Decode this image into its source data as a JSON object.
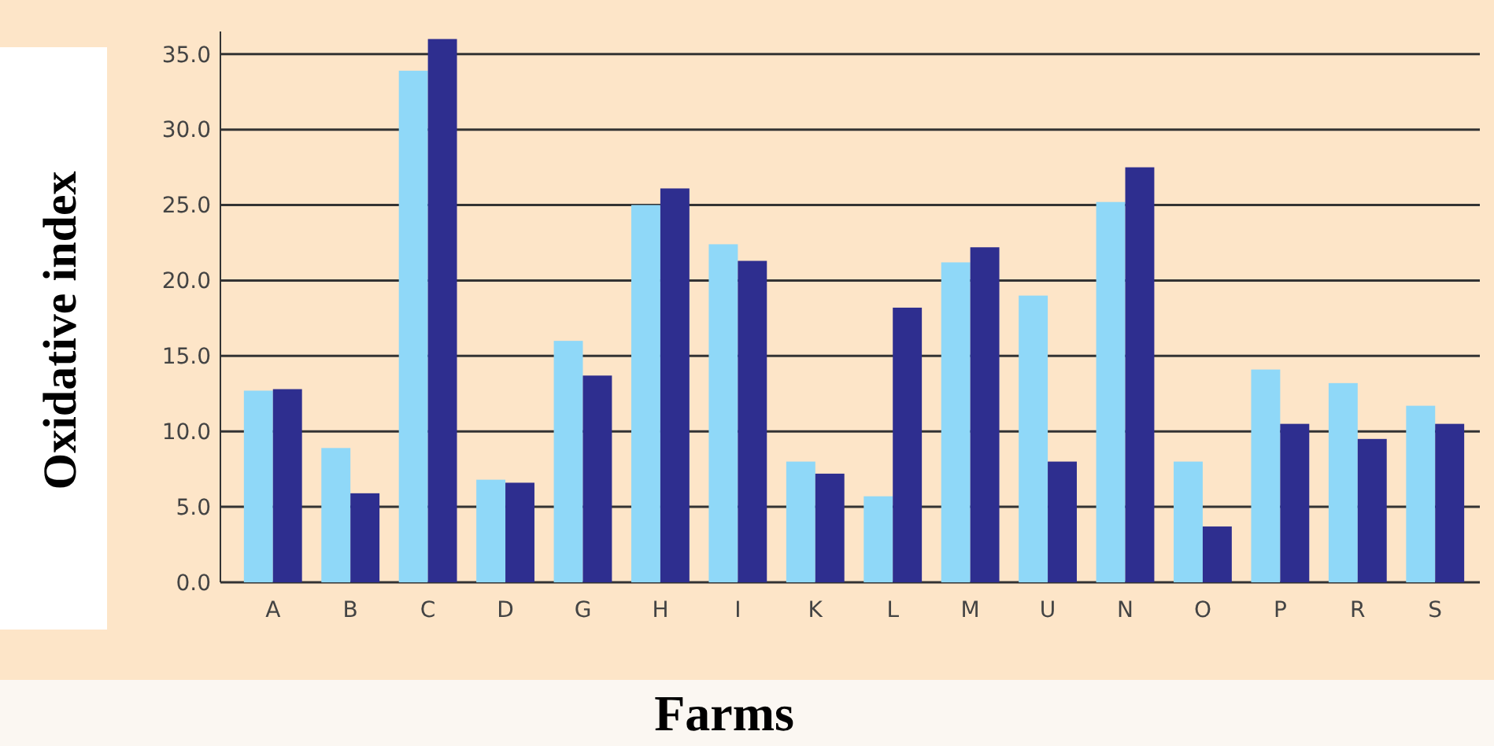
{
  "chart_data": {
    "type": "bar",
    "xlabel": "Farms",
    "ylabel": "Oxidative index",
    "categories": [
      "A",
      "B",
      "C",
      "D",
      "G",
      "H",
      "I",
      "K",
      "L",
      "M",
      "U",
      "N",
      "O",
      "P",
      "R",
      "S"
    ],
    "series": [
      {
        "color": "#8fd8f8",
        "values": [
          12.7,
          8.9,
          33.9,
          6.8,
          16.0,
          25.0,
          22.4,
          8.0,
          5.7,
          21.2,
          19.0,
          25.2,
          8.0,
          14.1,
          13.2,
          11.7
        ]
      },
      {
        "color": "#2e2e8f",
        "values": [
          12.8,
          5.9,
          36.0,
          6.6,
          13.7,
          26.1,
          21.3,
          7.2,
          18.2,
          22.2,
          8.0,
          27.5,
          3.7,
          10.5,
          9.5,
          10.5
        ]
      }
    ],
    "ylim": [
      0,
      36.5
    ],
    "yticks": [
      {
        "value": 0,
        "label": "0.0"
      },
      {
        "value": 5,
        "label": "5.0"
      },
      {
        "value": 10,
        "label": "10.0"
      },
      {
        "value": 15,
        "label": "15.0"
      },
      {
        "value": 20,
        "label": "20.0"
      },
      {
        "value": 25,
        "label": "25.0"
      },
      {
        "value": 30,
        "label": "30.0"
      },
      {
        "value": 35,
        "label": "35.0"
      }
    ],
    "grid": "y"
  }
}
